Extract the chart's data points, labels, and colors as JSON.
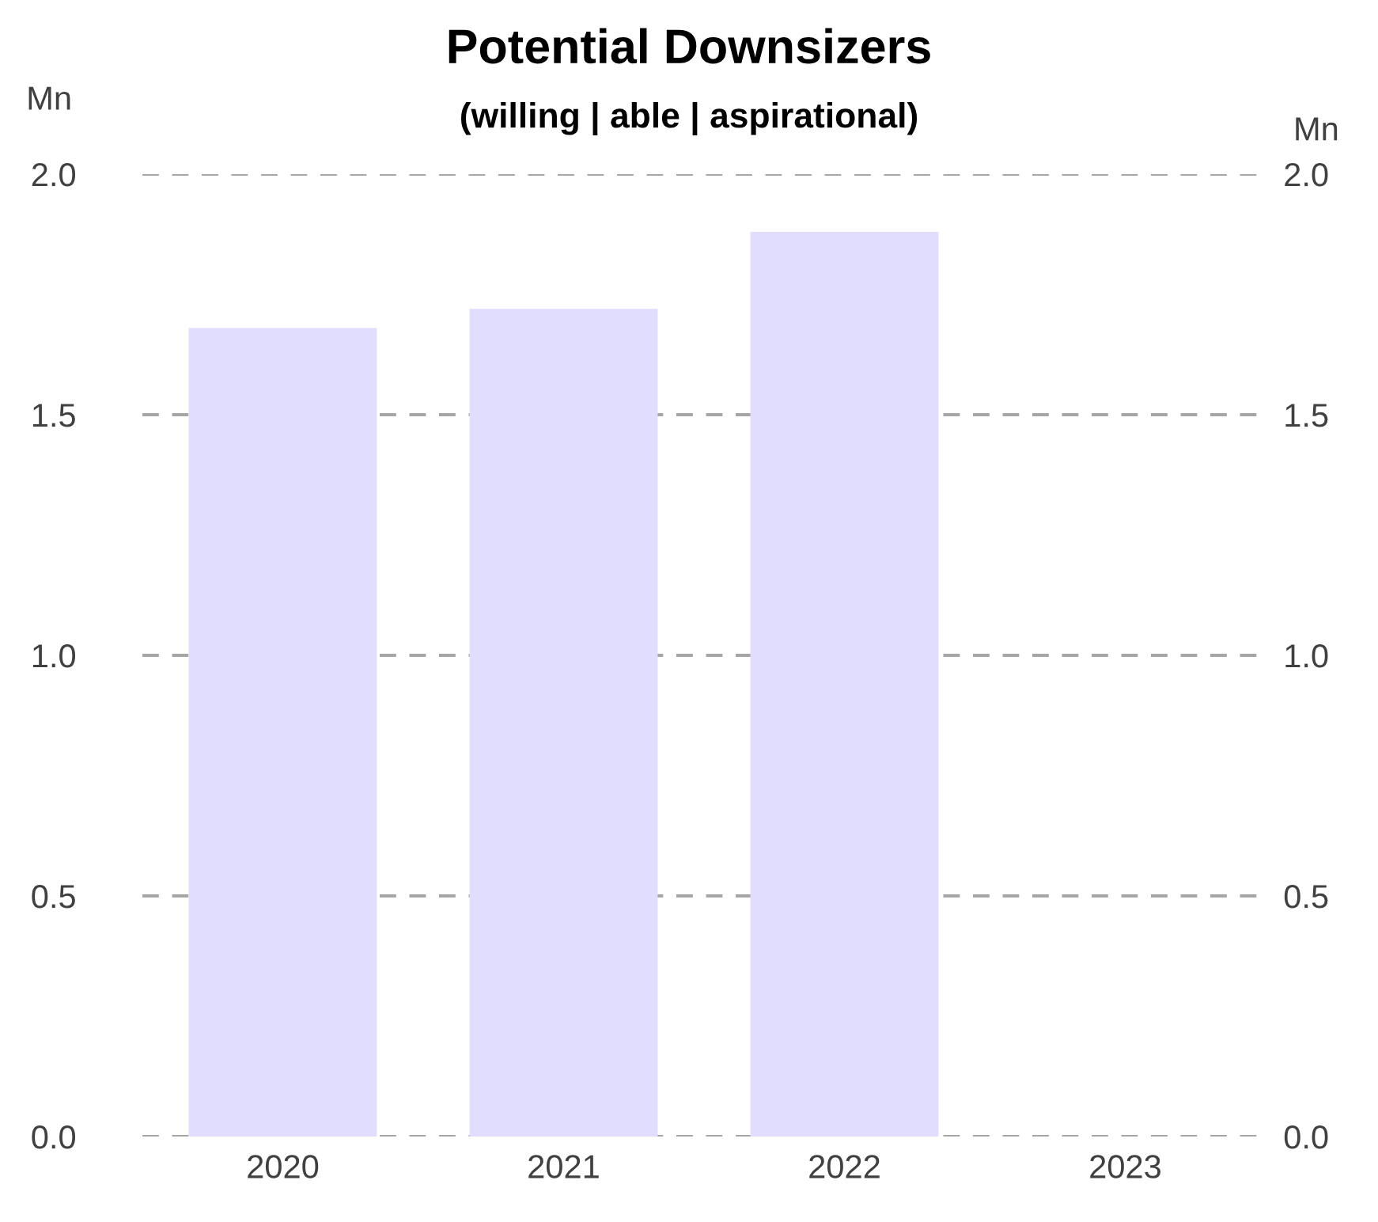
{
  "chart_data": {
    "type": "bar",
    "title": "Potential Downsizers",
    "subtitle": "(willing | able | aspirational)",
    "ylabel": "Mn",
    "y2label": "Mn",
    "categories": [
      "2020",
      "2021",
      "2022",
      "2023"
    ],
    "series": [
      {
        "color": "#e0ddff",
        "values": [
          1.68,
          1.72,
          1.88,
          null
        ]
      }
    ],
    "ylim": [
      0,
      2.0
    ],
    "yticks": [
      {
        "value": 0,
        "label": "0.0"
      },
      {
        "value": 0.5,
        "label": "0.5"
      },
      {
        "value": 1.0,
        "label": "1.0"
      },
      {
        "value": 1.5,
        "label": "1.5"
      },
      {
        "value": 2.0,
        "label": "2.0"
      }
    ],
    "y2lim": [
      0,
      2.0
    ],
    "y2ticks": [
      {
        "value": 0,
        "label": "0.0"
      },
      {
        "value": 0.5,
        "label": "0.5"
      },
      {
        "value": 1.0,
        "label": "1.0"
      },
      {
        "value": 1.5,
        "label": "1.5"
      },
      {
        "value": 2.0,
        "label": "2.0"
      }
    ],
    "grid": "y",
    "line_style": "dashed",
    "legend": false
  }
}
